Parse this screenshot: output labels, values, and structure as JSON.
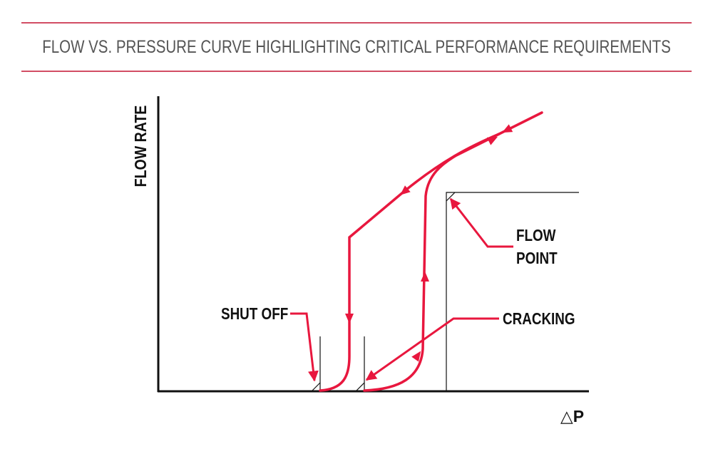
{
  "header": {
    "title": "FLOW VS. PRESSURE CURVE HIGHLIGHTING CRITICAL PERFORMANCE REQUIREMENTS"
  },
  "axes": {
    "y_label": "FLOW RATE",
    "x_label": "△P"
  },
  "annotations": {
    "shut_off": "SHUT OFF",
    "cracking": "CRACKING",
    "flow_point": [
      "FLOW",
      "POINT"
    ]
  }
}
